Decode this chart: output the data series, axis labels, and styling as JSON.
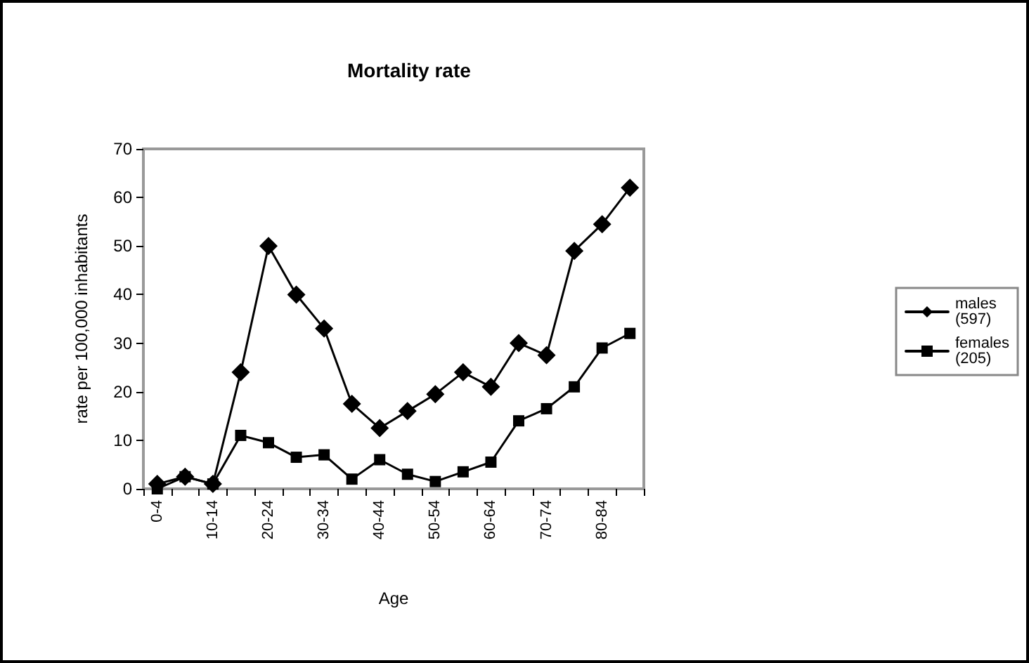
{
  "chart_data": {
    "type": "line",
    "title": "Mortality rate",
    "xlabel": "Age",
    "ylabel": "rate per 100,000 inhabitants",
    "categories": [
      "0-4",
      null,
      "10-14",
      null,
      "20-24",
      null,
      "30-34",
      null,
      "40-44",
      null,
      "50-54",
      null,
      "60-64",
      null,
      "70-74",
      null,
      "80-84",
      null
    ],
    "series": [
      {
        "name": "males (597)",
        "color": "#000000",
        "marker": "diamond",
        "values": [
          1,
          2.5,
          1,
          24,
          50,
          40,
          33,
          17.5,
          12.5,
          16,
          19.5,
          24,
          21,
          30,
          27.5,
          49,
          54.5,
          62
        ]
      },
      {
        "name": "females (205)",
        "color": "#000000",
        "marker": "square",
        "values": [
          0,
          2.5,
          1,
          11,
          9.5,
          6.5,
          7,
          2,
          6,
          3,
          1.5,
          3.5,
          5.5,
          14,
          16.5,
          21,
          29,
          32
        ]
      }
    ],
    "ylim": [
      0,
      70
    ],
    "yticks": [
      0,
      10,
      20,
      30,
      40,
      50,
      60,
      70
    ],
    "grid": false,
    "legend": "right",
    "line_style": "solid"
  }
}
